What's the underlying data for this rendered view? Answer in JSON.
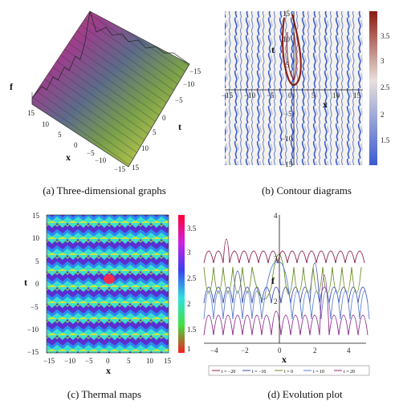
{
  "captions": {
    "a": "(a)  Three-dimensional graphs",
    "b": "(b)  Contour diagrams",
    "c": "(c)  Thermal maps",
    "d": "(d)  Evolution plot"
  },
  "panel_a": {
    "axis_f": "f",
    "axis_x": "x",
    "axis_t": "t",
    "x_ticks": [
      "15",
      "10",
      "5",
      "0",
      "−5",
      "−10",
      "−15"
    ],
    "t_ticks": [
      "−15",
      "−10",
      "−5",
      "0",
      "5",
      "10",
      "15"
    ]
  },
  "panel_b": {
    "axis_t": "t",
    "axis_x": "x",
    "x_ticks": [
      "−15",
      "−10",
      "−5",
      "0",
      "5",
      "10",
      "15"
    ],
    "t_ticks": [
      "15",
      "10",
      "5",
      "−5",
      "−10",
      "−15"
    ],
    "colorbar_ticks": [
      "3.5",
      "3",
      "2.5",
      "2",
      "1.5"
    ],
    "colors": {
      "low": "#3a5bd0",
      "mid": "#e8e6e0",
      "high": "#8b1a10"
    }
  },
  "panel_c": {
    "axis_t": "t",
    "axis_x": "x",
    "x_ticks": [
      "−15",
      "−10",
      "−5",
      "0",
      "5",
      "10",
      "15"
    ],
    "t_ticks": [
      "15",
      "10",
      "5",
      "0",
      "−5",
      "−10",
      "−15"
    ],
    "colorbar_ticks": [
      "3.5",
      "3",
      "2.5",
      "2",
      "1.5",
      "1"
    ]
  },
  "panel_d": {
    "axis_f": "f",
    "axis_x": "x",
    "y_ticks": [
      "4",
      "3",
      "2"
    ],
    "x_ticks": [
      "−4",
      "−2",
      "0",
      "2",
      "4"
    ],
    "legend": [
      {
        "label": "t = −20",
        "color": "#8b2252"
      },
      {
        "label": "t = −10",
        "color": "#3b4cb0"
      },
      {
        "label": "t = 0",
        "color": "#6b8e23"
      },
      {
        "label": "t = 10",
        "color": "#5a7fd0"
      },
      {
        "label": "t = 20",
        "color": "#8e2a8e"
      }
    ]
  }
}
